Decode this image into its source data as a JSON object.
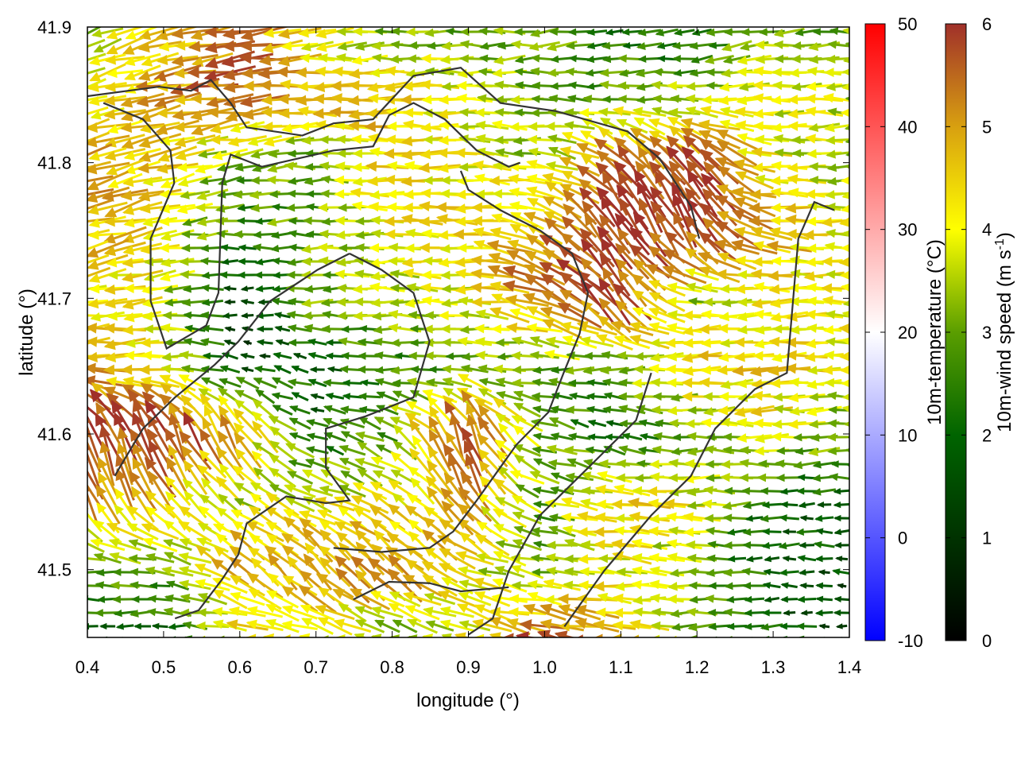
{
  "chart_data": {
    "type": "vector-field",
    "xlabel": "longitude (°)",
    "ylabel": "latitude (°)",
    "xlim": [
      0.4,
      1.4
    ],
    "ylim": [
      41.45,
      41.9
    ],
    "xticks": [
      "0.4",
      "0.5",
      "0.6",
      "0.7",
      "0.8",
      "0.9",
      "1.0",
      "1.1",
      "1.2",
      "1.3",
      "1.4"
    ],
    "yticks": [
      "41.5",
      "41.6",
      "41.7",
      "41.8",
      "41.9"
    ],
    "grid": false,
    "colorbars": [
      {
        "label": "10m-temperature (°C)",
        "range": [
          -10,
          50
        ],
        "ticks": [
          "-10",
          "0",
          "10",
          "20",
          "30",
          "40",
          "50"
        ],
        "colors": [
          "#0000ff",
          "#ffffff",
          "#ff0000"
        ]
      },
      {
        "label_main": "10m-wind speed (m s",
        "label_sup": "-1",
        "label_end": ")",
        "range": [
          0,
          6
        ],
        "ticks": [
          "0",
          "1",
          "2",
          "3",
          "4",
          "5",
          "6"
        ],
        "colors": [
          "#000000",
          "#006400",
          "#5a9e00",
          "#ffff00",
          "#d8a010",
          "#a0302a"
        ]
      }
    ],
    "wind_grid": {
      "lon": [
        0.4,
        0.5,
        0.6,
        0.7,
        0.8,
        0.9,
        1.0,
        1.1,
        1.2,
        1.3,
        1.4
      ],
      "lat": [
        41.9,
        41.85,
        41.8,
        41.75,
        41.7,
        41.65,
        41.6,
        41.55,
        41.5,
        41.45
      ],
      "speed_ms": [
        [
          3.5,
          4.5,
          5.5,
          4,
          3,
          3,
          3,
          2,
          2,
          3,
          3
        ],
        [
          3.5,
          5,
          5.5,
          5,
          4.5,
          4,
          3,
          3,
          3.5,
          4,
          3.5
        ],
        [
          5,
          4.5,
          3,
          3,
          4.5,
          4,
          3.5,
          5.5,
          6,
          4,
          3.5
        ],
        [
          5,
          4,
          2.5,
          3,
          4,
          4.5,
          5,
          6,
          6,
          5,
          4
        ],
        [
          4,
          4,
          1,
          3,
          3.5,
          4,
          5.5,
          6,
          3.5,
          4,
          4
        ],
        [
          5,
          4,
          1.5,
          2,
          2.5,
          3,
          3,
          3,
          4.5,
          4.5,
          4
        ],
        [
          6,
          6,
          5,
          2,
          3,
          6,
          3,
          2,
          3,
          4,
          3
        ],
        [
          5,
          4.5,
          3.5,
          4,
          4,
          5,
          3,
          4.5,
          4,
          2,
          2
        ],
        [
          3,
          3,
          5,
          5,
          5.5,
          4,
          3,
          4,
          3,
          2,
          1.5
        ],
        [
          2,
          2,
          4,
          4,
          3,
          4,
          6,
          5,
          3,
          2,
          1.5
        ]
      ],
      "direction_deg": [
        [
          200,
          195,
          190,
          185,
          180,
          180,
          185,
          190,
          190,
          185,
          180
        ],
        [
          195,
          190,
          185,
          180,
          180,
          180,
          180,
          180,
          185,
          180,
          180
        ],
        [
          200,
          195,
          190,
          180,
          180,
          180,
          175,
          130,
          125,
          180,
          180
        ],
        [
          195,
          190,
          180,
          180,
          180,
          180,
          150,
          120,
          120,
          170,
          180
        ],
        [
          190,
          185,
          180,
          180,
          180,
          180,
          155,
          125,
          180,
          180,
          180
        ],
        [
          180,
          180,
          160,
          170,
          180,
          180,
          180,
          180,
          185,
          185,
          180
        ],
        [
          110,
          110,
          120,
          170,
          150,
          105,
          160,
          170,
          180,
          180,
          180
        ],
        [
          115,
          130,
          150,
          160,
          150,
          120,
          170,
          170,
          180,
          180,
          180
        ],
        [
          180,
          175,
          140,
          130,
          135,
          160,
          170,
          175,
          180,
          180,
          180
        ],
        [
          180,
          180,
          175,
          170,
          165,
          165,
          170,
          175,
          180,
          180,
          180
        ]
      ]
    },
    "contours": [
      [
        [
          0.4,
          41.849
        ],
        [
          0.494,
          41.856
        ],
        [
          0.536,
          41.853
        ],
        [
          0.562,
          41.861
        ],
        [
          0.588,
          41.844
        ],
        [
          0.609,
          41.826
        ],
        [
          0.682,
          41.82
        ],
        [
          0.723,
          41.829
        ],
        [
          0.775,
          41.832
        ],
        [
          0.828,
          41.864
        ],
        [
          0.89,
          41.87
        ],
        [
          0.942,
          41.844
        ],
        [
          1.015,
          41.838
        ],
        [
          1.109,
          41.823
        ],
        [
          1.151,
          41.803
        ],
        [
          1.192,
          41.768
        ],
        [
          1.203,
          41.744
        ]
      ],
      [
        [
          0.421,
          41.844
        ],
        [
          0.473,
          41.832
        ],
        [
          0.509,
          41.809
        ],
        [
          0.514,
          41.785
        ],
        [
          0.483,
          41.744
        ],
        [
          0.483,
          41.698
        ],
        [
          0.504,
          41.663
        ],
        [
          0.556,
          41.68
        ],
        [
          0.572,
          41.704
        ],
        [
          0.577,
          41.785
        ],
        [
          0.588,
          41.806
        ],
        [
          0.629,
          41.797
        ],
        [
          0.723,
          41.809
        ],
        [
          0.775,
          41.812
        ],
        [
          0.796,
          41.835
        ],
        [
          0.828,
          41.844
        ],
        [
          0.869,
          41.832
        ],
        [
          0.911,
          41.809
        ],
        [
          0.953,
          41.797
        ],
        [
          0.968,
          41.8
        ]
      ],
      [
        [
          0.89,
          41.794
        ],
        [
          0.9,
          41.78
        ],
        [
          0.942,
          41.765
        ],
        [
          0.994,
          41.75
        ],
        [
          1.036,
          41.733
        ],
        [
          1.057,
          41.704
        ],
        [
          1.046,
          41.674
        ],
        [
          1.025,
          41.645
        ],
        [
          1.005,
          41.616
        ],
        [
          0.963,
          41.592
        ],
        [
          0.911,
          41.551
        ],
        [
          0.88,
          41.528
        ],
        [
          0.849,
          41.516
        ],
        [
          0.786,
          41.513
        ],
        [
          0.723,
          41.516
        ]
      ],
      [
        [
          0.744,
          41.733
        ],
        [
          0.702,
          41.721
        ],
        [
          0.64,
          41.698
        ],
        [
          0.598,
          41.668
        ],
        [
          0.567,
          41.651
        ],
        [
          0.515,
          41.627
        ],
        [
          0.473,
          41.604
        ],
        [
          0.442,
          41.575
        ],
        [
          0.436,
          41.569
        ]
      ],
      [
        [
          0.744,
          41.733
        ],
        [
          0.786,
          41.721
        ],
        [
          0.828,
          41.704
        ],
        [
          0.849,
          41.668
        ],
        [
          0.828,
          41.627
        ],
        [
          0.765,
          41.613
        ],
        [
          0.713,
          41.604
        ],
        [
          0.713,
          41.575
        ],
        [
          0.744,
          41.551
        ],
        [
          0.713,
          41.549
        ],
        [
          0.661,
          41.554
        ],
        [
          0.609,
          41.534
        ],
        [
          0.598,
          41.511
        ],
        [
          0.577,
          41.493
        ],
        [
          0.546,
          41.47
        ],
        [
          0.515,
          41.464
        ]
      ],
      [
        [
          1.38,
          41.765
        ],
        [
          1.354,
          41.771
        ],
        [
          1.333,
          41.744
        ],
        [
          1.318,
          41.645
        ],
        [
          1.276,
          41.633
        ],
        [
          1.224,
          41.604
        ],
        [
          1.192,
          41.569
        ],
        [
          1.14,
          41.54
        ],
        [
          1.078,
          41.499
        ],
        [
          1.026,
          41.458
        ]
      ],
      [
        [
          1.14,
          41.645
        ],
        [
          1.12,
          41.61
        ],
        [
          1.057,
          41.575
        ],
        [
          0.994,
          41.54
        ],
        [
          0.953,
          41.499
        ],
        [
          0.932,
          41.464
        ],
        [
          0.9,
          41.452
        ]
      ],
      [
        [
          0.749,
          41.478
        ],
        [
          0.796,
          41.491
        ],
        [
          0.849,
          41.49
        ],
        [
          0.89,
          41.484
        ],
        [
          0.953,
          41.487
        ]
      ]
    ]
  }
}
